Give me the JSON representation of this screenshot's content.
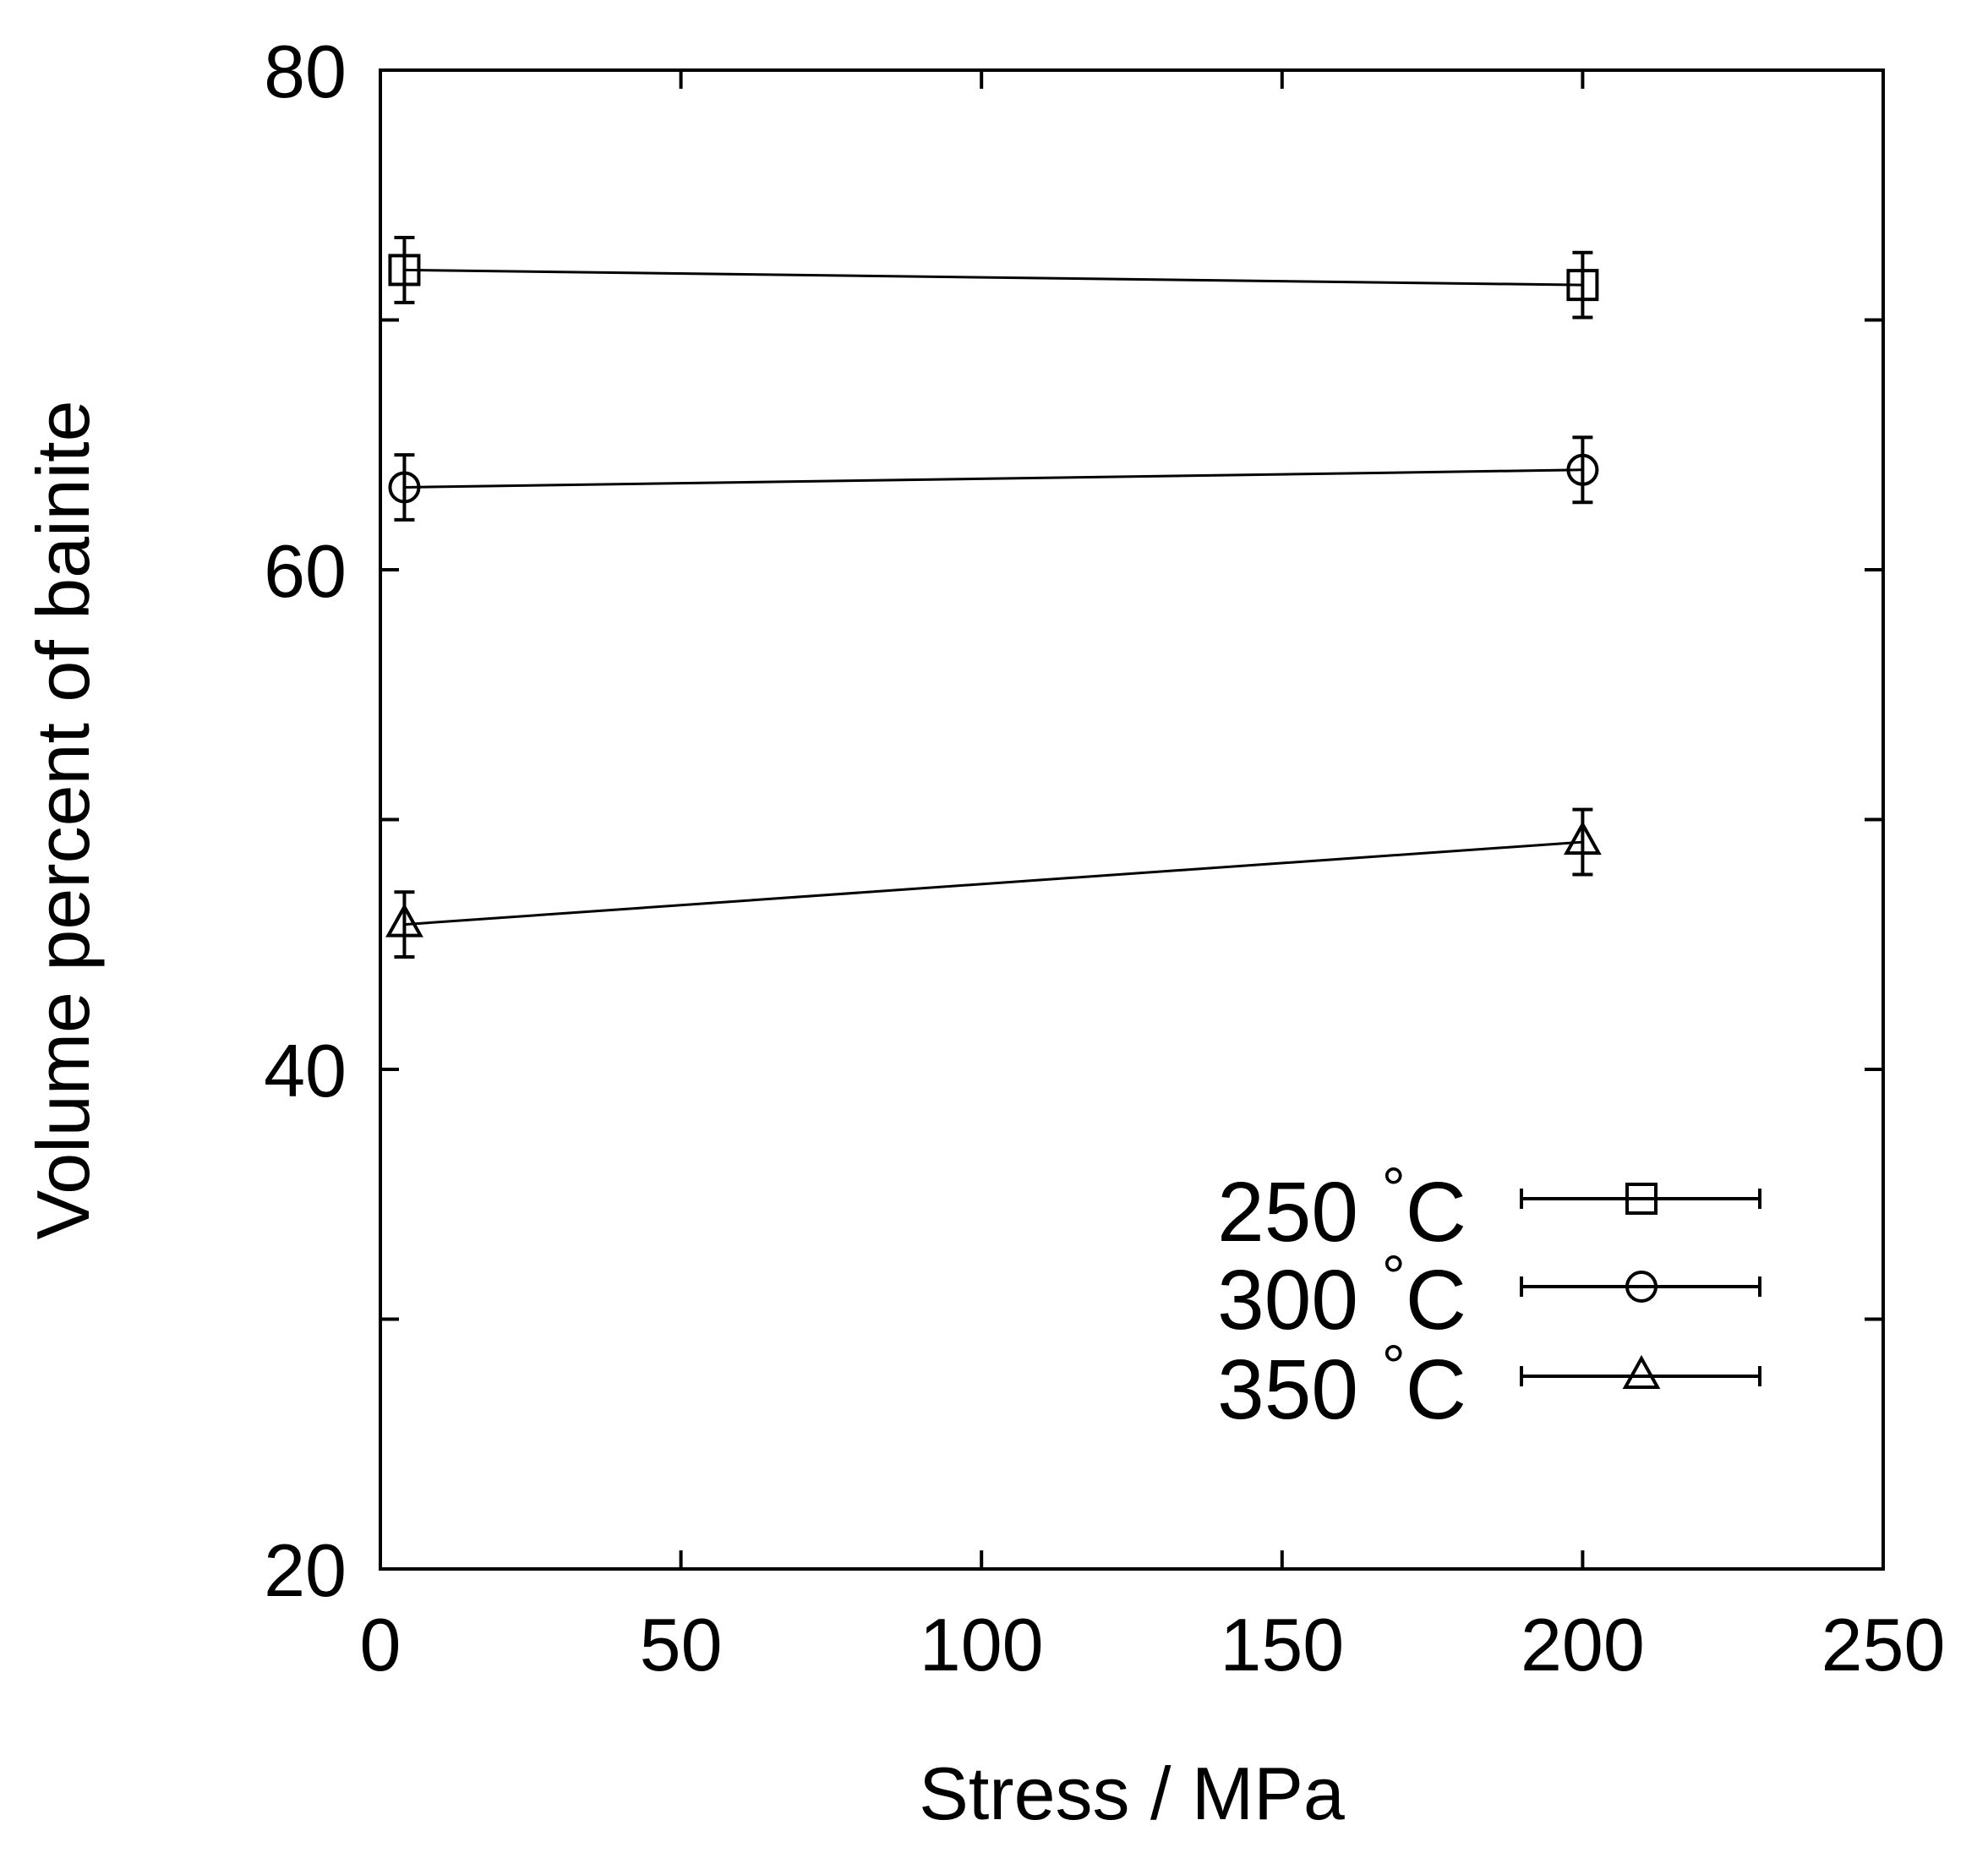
{
  "chart_data": {
    "type": "line",
    "title": "",
    "xlabel": "Stress / MPa",
    "ylabel": "Volume percent of bainite",
    "xlim": [
      0,
      250
    ],
    "ylim": [
      20,
      80
    ],
    "xticks": [
      0,
      50,
      100,
      150,
      200,
      250
    ],
    "xtick_labels": [
      "0",
      "50",
      "100",
      "150",
      "200",
      "250"
    ],
    "yticks": [
      20,
      30,
      40,
      50,
      60,
      70,
      80
    ],
    "ytick_labels": [
      "20",
      "",
      "40",
      "",
      "60",
      "",
      "80"
    ],
    "grid": false,
    "legend_position": "bottom-right",
    "error_bars": true,
    "series": [
      {
        "name": "250 °C",
        "name_value": "250",
        "name_unit": "°C",
        "marker": "square",
        "x": [
          4,
          200
        ],
        "y": [
          72.0,
          71.4
        ],
        "yerr": [
          1.3,
          1.3
        ],
        "color": "#000000"
      },
      {
        "name": "300 °C",
        "name_value": "300",
        "name_unit": "°C",
        "marker": "circle",
        "x": [
          4,
          200
        ],
        "y": [
          63.3,
          64.0
        ],
        "yerr": [
          1.3,
          1.3
        ],
        "color": "#000000"
      },
      {
        "name": "350 °C",
        "name_value": "350",
        "name_unit": "°C",
        "marker": "triangle",
        "x": [
          4,
          200
        ],
        "y": [
          45.8,
          49.1
        ],
        "yerr": [
          1.3,
          1.3
        ],
        "color": "#000000"
      }
    ]
  }
}
